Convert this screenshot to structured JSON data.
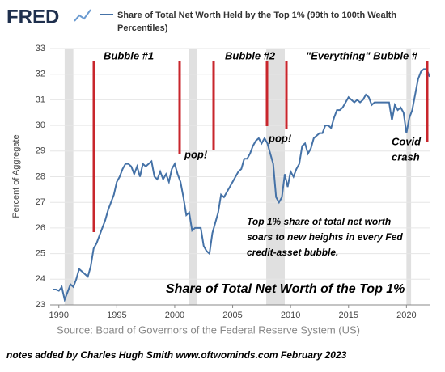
{
  "chart_data": {
    "type": "line",
    "logo": "FRED",
    "title": [
      "Share of Total Net Worth Held by the Top 1% (99th to 100th Wealth",
      "Percentiles)"
    ],
    "ylabel": "Percent of Aggregate",
    "source": "Source: Board of Governors of the Federal Reserve System (US)",
    "footer": "notes added by Charles Hugh Smith   www.oftwominds.com   February 2023",
    "annotations": {
      "bubble1": "Bubble #1",
      "bubble2": "Bubble #2",
      "bubble3": "\"Everything\" Bubble #",
      "pop1": "pop!",
      "pop2": "pop!",
      "covid": [
        "Covid",
        "crash"
      ],
      "note": [
        "Top 1% share of total net worth",
        "soars to new heights in every Fed",
        "credit-asset bubble."
      ],
      "headline": "Share of Total Net Worth of the Top 1%"
    },
    "xlim": [
      1989.25,
      2022.0
    ],
    "xticks": [
      1990,
      1995,
      2000,
      2005,
      2010,
      2015,
      2020
    ],
    "ylim": [
      23,
      33
    ],
    "yticks": [
      23,
      24,
      25,
      26,
      27,
      28,
      29,
      30,
      31,
      32,
      33
    ],
    "grid": true,
    "recession_color": "#e0e0e0",
    "recessions": [
      [
        1990.5,
        1991.25
      ],
      [
        2001.25,
        2001.9
      ],
      [
        2007.9,
        2009.5
      ],
      [
        2020.0,
        2020.4
      ]
    ],
    "x": [
      1989.5,
      1989.75,
      1990,
      1990.25,
      1990.5,
      1990.75,
      1991,
      1991.25,
      1991.5,
      1991.75,
      1992,
      1992.25,
      1992.5,
      1992.75,
      1993,
      1993.25,
      1993.5,
      1993.75,
      1994,
      1994.25,
      1994.5,
      1994.75,
      1995,
      1995.25,
      1995.5,
      1995.75,
      1996,
      1996.25,
      1996.5,
      1996.75,
      1997,
      1997.25,
      1997.5,
      1997.75,
      1998,
      1998.25,
      1998.5,
      1998.75,
      1999,
      1999.25,
      1999.5,
      1999.75,
      2000,
      2000.25,
      2000.5,
      2000.75,
      2001,
      2001.25,
      2001.5,
      2001.75,
      2002,
      2002.25,
      2002.5,
      2002.75,
      2003,
      2003.25,
      2003.5,
      2003.75,
      2004,
      2004.25,
      2004.5,
      2004.75,
      2005,
      2005.25,
      2005.5,
      2005.75,
      2006,
      2006.25,
      2006.5,
      2006.75,
      2007,
      2007.25,
      2007.5,
      2007.75,
      2008,
      2008.25,
      2008.5,
      2008.75,
      2009,
      2009.25,
      2009.5,
      2009.75,
      2010,
      2010.25,
      2010.5,
      2010.75,
      2011,
      2011.25,
      2011.5,
      2011.75,
      2012,
      2012.25,
      2012.5,
      2012.75,
      2013,
      2013.25,
      2013.5,
      2013.75,
      2014,
      2014.25,
      2014.5,
      2014.75,
      2015,
      2015.25,
      2015.5,
      2015.75,
      2016,
      2016.25,
      2016.5,
      2016.75,
      2017,
      2017.25,
      2017.5,
      2017.75,
      2018,
      2018.25,
      2018.5,
      2018.75,
      2019,
      2019.25,
      2019.5,
      2019.75,
      2020,
      2020.25,
      2020.5,
      2020.75,
      2021,
      2021.25,
      2021.5,
      2021.75,
      2022
    ],
    "series": [
      {
        "name": "Share of Total Net Worth Held by the Top 1% (99th to 100th Wealth Percentiles)",
        "color": "#4572a7",
        "values": [
          23.6,
          23.6,
          23.55,
          23.7,
          23.2,
          23.5,
          23.8,
          23.7,
          24.0,
          24.4,
          24.3,
          24.2,
          24.1,
          24.5,
          25.2,
          25.4,
          25.7,
          26.0,
          26.3,
          26.7,
          27.0,
          27.3,
          27.8,
          28.0,
          28.3,
          28.5,
          28.5,
          28.4,
          28.1,
          28.4,
          28.0,
          28.5,
          28.4,
          28.5,
          28.6,
          28.0,
          27.9,
          28.2,
          27.9,
          28.1,
          27.8,
          28.3,
          28.5,
          28.1,
          27.8,
          27.2,
          26.5,
          26.6,
          25.9,
          26.0,
          26.0,
          26.0,
          25.3,
          25.1,
          25.0,
          25.8,
          26.2,
          26.6,
          27.3,
          27.2,
          27.4,
          27.6,
          27.8,
          28.0,
          28.2,
          28.3,
          28.7,
          28.7,
          28.9,
          29.2,
          29.4,
          29.5,
          29.3,
          29.5,
          29.3,
          28.9,
          28.5,
          27.2,
          27.0,
          27.2,
          28.1,
          27.6,
          28.2,
          28.0,
          28.3,
          28.5,
          29.2,
          29.3,
          28.9,
          29.1,
          29.5,
          29.6,
          29.7,
          29.7,
          30.0,
          30.0,
          29.9,
          30.3,
          30.6,
          30.6,
          30.7,
          30.9,
          31.1,
          31.0,
          30.9,
          31.0,
          30.9,
          31.0,
          31.2,
          31.1,
          30.8,
          30.9,
          30.9,
          30.9,
          30.9,
          30.9,
          30.9,
          30.2,
          30.8,
          30.6,
          30.7,
          30.5,
          29.7,
          30.3,
          30.6,
          31.2,
          31.8,
          32.1,
          32.2,
          32.2,
          31.9
        ]
      }
    ]
  }
}
